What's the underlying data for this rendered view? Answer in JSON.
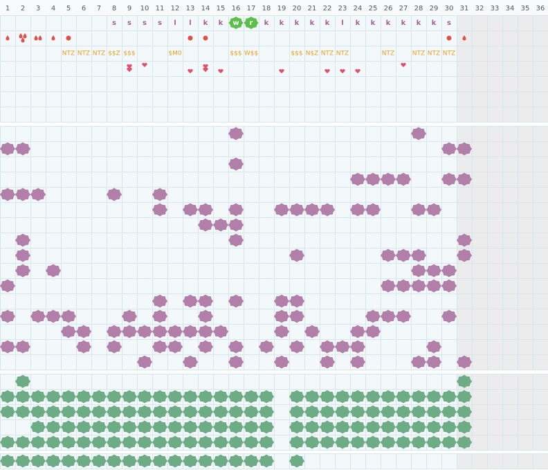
{
  "columns": [
    "1",
    "2",
    "3",
    "4",
    "5",
    "6",
    "7",
    "8",
    "9",
    "10",
    "11",
    "12",
    "13",
    "14",
    "15",
    "16",
    "17",
    "18",
    "19",
    "20",
    "21",
    "22",
    "23",
    "24",
    "25",
    "26",
    "27",
    "28",
    "29",
    "30",
    "31",
    "32",
    "33",
    "34",
    "35",
    "36"
  ],
  "letters": [
    null,
    null,
    null,
    null,
    null,
    null,
    null,
    "s",
    "s",
    "s",
    "s",
    "l",
    "l",
    "k",
    "k",
    "w",
    "r",
    "k",
    "k",
    "k",
    "k",
    "k",
    "l",
    "k",
    "k",
    "k",
    "k",
    "k",
    "k",
    "s",
    null,
    null,
    null,
    null,
    null,
    null
  ],
  "tags": [
    null,
    null,
    null,
    null,
    "NTZ",
    "NTZ",
    "NTZ",
    "$$Z",
    "$$$",
    null,
    null,
    "$M0",
    null,
    null,
    null,
    "$$$",
    "W$$",
    null,
    null,
    "$$$",
    "N$Z",
    "NTZ",
    "NTZ",
    null,
    null,
    "NTZ",
    null,
    "NTZ",
    "NTZ",
    "NTZ",
    null,
    null,
    null,
    null,
    null,
    null
  ]
}
